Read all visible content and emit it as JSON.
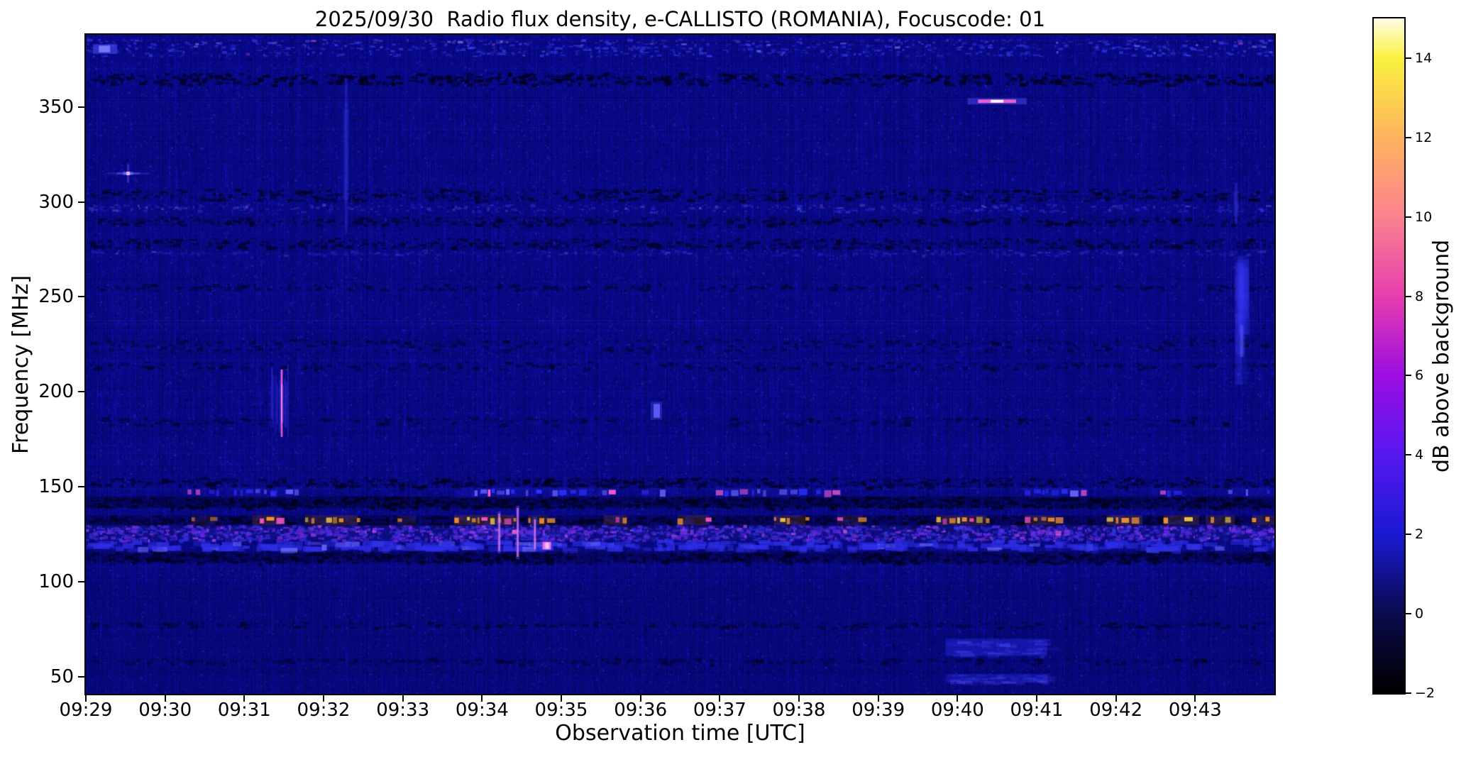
{
  "chart_data": {
    "type": "heatmap",
    "title": "2025/09/30  Radio flux density, e-CALLISTO (ROMANIA), Focuscode: 01",
    "xlabel": "Observation time [UTC]",
    "ylabel": "Frequency [MHz]",
    "colorbar_label": "dB above background",
    "x_start": "09:29:00",
    "x_end": "09:44:00",
    "x_ticks": [
      "09:29",
      "09:30",
      "09:31",
      "09:32",
      "09:33",
      "09:34",
      "09:35",
      "09:36",
      "09:37",
      "09:38",
      "09:39",
      "09:40",
      "09:41",
      "09:42",
      "09:43"
    ],
    "y_ticks_mhz": [
      350,
      300,
      250,
      200,
      150,
      100,
      50
    ],
    "freq_range_mhz": [
      41,
      388
    ],
    "value_range_db": [
      -2,
      15
    ],
    "colorbar_ticks_db": [
      14,
      12,
      10,
      8,
      6,
      4,
      2,
      0,
      -2
    ],
    "background_level_db": 0.8,
    "colormap_stops": [
      [
        0.0,
        "#000000"
      ],
      [
        0.118,
        "#0b0b4e"
      ],
      [
        0.235,
        "#1a1ad2"
      ],
      [
        0.353,
        "#5718f2"
      ],
      [
        0.471,
        "#9c0ee2"
      ],
      [
        0.588,
        "#e83eb0"
      ],
      [
        0.706,
        "#fb8290"
      ],
      [
        0.824,
        "#ffb35f"
      ],
      [
        0.941,
        "#faf23f"
      ],
      [
        1.0,
        "#fffce8"
      ]
    ],
    "base_color": "#08087e",
    "bands": [
      {
        "freq": [
          377,
          386
        ],
        "style": "bright_speckle",
        "strength": 0.85
      },
      {
        "freq": [
          362,
          368
        ],
        "style": "dark_speckle",
        "strength": 0.85
      },
      {
        "freq": [
          301,
          307
        ],
        "style": "dark_speckle",
        "strength": 0.6
      },
      {
        "freq": [
          295,
          299
        ],
        "style": "bright_speckle",
        "strength": 0.45
      },
      {
        "freq": [
          288,
          292
        ],
        "style": "dark_speckle",
        "strength": 0.5
      },
      {
        "freq": [
          276,
          281
        ],
        "style": "dark_speckle",
        "strength": 0.55
      },
      {
        "freq": [
          272,
          275
        ],
        "style": "bright_speckle",
        "strength": 0.3
      },
      {
        "freq": [
          254,
          257
        ],
        "style": "dark_speckle",
        "strength": 0.3
      },
      {
        "freq": [
          222,
          228
        ],
        "style": "dark_speckle",
        "strength": 0.35
      },
      {
        "freq": [
          212,
          216
        ],
        "style": "dark_speckle",
        "strength": 0.3
      },
      {
        "freq": [
          183,
          187
        ],
        "style": "dark_speckle",
        "strength": 0.25
      },
      {
        "freq": [
          150,
          155
        ],
        "style": "dark_speckle",
        "strength": 0.65
      },
      {
        "freq": [
          139,
          145
        ],
        "style": "dark_band",
        "strength": 0.8
      },
      {
        "freq": [
          129.5,
          135
        ],
        "style": "dark_band",
        "strength": 0.7
      },
      {
        "freq": [
          122,
          130
        ],
        "style": "purple_texture",
        "strength": 0.8
      },
      {
        "freq": [
          116,
          122
        ],
        "style": "blue_blobs",
        "strength": 0.8
      },
      {
        "freq": [
          110,
          116
        ],
        "style": "dark_band",
        "strength": 0.6
      },
      {
        "freq": [
          76,
          79
        ],
        "style": "dark_speckle",
        "strength": 0.3
      },
      {
        "freq": [
          57,
          60
        ],
        "style": "dark_speckle",
        "strength": 0.25
      }
    ],
    "rfi_dash_rows": [
      {
        "freq": 147,
        "height_mhz": 1.8,
        "palette": [
          "#2e2eff",
          "#6a6aff",
          "#ff5fd2"
        ],
        "segments": [
          [
            "09:30:17",
            "09:30:52",
            0.45
          ],
          [
            "09:30:52",
            "09:31:40",
            0.85
          ],
          [
            "09:33:39",
            "09:34:42",
            1.0
          ],
          [
            "09:34:46",
            "09:35:37",
            0.9
          ],
          [
            "09:36:01",
            "09:36:28",
            0.65
          ],
          [
            "09:36:57",
            "09:38:05",
            0.9
          ],
          [
            "09:38:13",
            "09:38:26",
            0.5
          ],
          [
            "09:40:51",
            "09:41:37",
            0.85
          ],
          [
            "09:42:25",
            "09:42:47",
            0.55
          ],
          [
            "09:43:25",
            "09:44:00",
            0.8
          ]
        ]
      },
      {
        "freq": 132.5,
        "height_mhz": 1.6,
        "palette": [
          "#ff9a33",
          "#ffd84e",
          "#ff55c8"
        ],
        "segments": [
          [
            "09:30:20",
            "09:30:38",
            0.45
          ],
          [
            "09:31:06",
            "09:31:28",
            0.9
          ],
          [
            "09:31:46",
            "09:32:07",
            0.8
          ],
          [
            "09:32:07",
            "09:32:26",
            0.95
          ],
          [
            "09:32:56",
            "09:33:10",
            0.5
          ],
          [
            "09:33:39",
            "09:34:25",
            1.0
          ],
          [
            "09:34:35",
            "09:34:50",
            0.8
          ],
          [
            "09:35:32",
            "09:35:50",
            0.85
          ],
          [
            "09:36:28",
            "09:36:52",
            0.9
          ],
          [
            "09:37:41",
            "09:38:05",
            0.9
          ],
          [
            "09:38:29",
            "09:38:48",
            0.6
          ],
          [
            "09:39:44",
            "09:40:22",
            0.85
          ],
          [
            "09:40:51",
            "09:41:15",
            0.8
          ],
          [
            "09:41:53",
            "09:42:20",
            0.95
          ],
          [
            "09:42:36",
            "09:43:03",
            0.85
          ],
          [
            "09:43:08",
            "09:43:30",
            0.8
          ],
          [
            "09:43:43",
            "09:44:00",
            0.8
          ]
        ]
      },
      {
        "freq": 126,
        "height_mhz": 1.5,
        "palette": [
          "#5a2ae0",
          "#8a38e8",
          "#ff6ad0"
        ],
        "segments": [
          [
            "09:30:20",
            "09:30:55",
            0.6
          ],
          [
            "09:31:40",
            "09:32:30",
            0.55
          ],
          [
            "09:33:45",
            "09:35:10",
            0.85
          ],
          [
            "09:36:30",
            "09:37:00",
            0.5
          ],
          [
            "09:37:55",
            "09:38:35",
            0.55
          ],
          [
            "09:40:55",
            "09:41:35",
            0.5
          ],
          [
            "09:42:30",
            "09:43:00",
            0.45
          ],
          [
            "09:43:30",
            "09:44:00",
            0.6
          ]
        ]
      }
    ],
    "events": [
      {
        "time": "09:29:13",
        "freq": [
          378,
          383
        ],
        "type": "blue_dash"
      },
      {
        "time": "09:29:32",
        "freq": [
          312,
          318
        ],
        "type": "point_flare"
      },
      {
        "time": "09:31:26",
        "freq": [
          174,
          214
        ],
        "type": "streak_cluster"
      },
      {
        "time": "09:32:17",
        "freq": [
          285,
          365
        ],
        "type": "faint_vstreak"
      },
      {
        "time": "09:34:13",
        "freq": [
          115,
          137
        ],
        "type": "bright_vstreak"
      },
      {
        "time": "09:34:27",
        "freq": [
          112,
          140
        ],
        "type": "bright_vstreak"
      },
      {
        "time": "09:34:40",
        "freq": [
          116,
          134
        ],
        "type": "bright_vstreak"
      },
      {
        "time": "09:34:49",
        "freq": [
          117,
          121
        ],
        "type": "pink_blob"
      },
      {
        "time": "09:36:12",
        "freq": [
          186,
          194
        ],
        "type": "blue_dot"
      },
      {
        "time": "09:40:30",
        "freq": [
          351,
          355
        ],
        "type": "bright_blip",
        "duration_s": 16
      },
      {
        "time": "09:43:31",
        "freq": [
          288,
          310
        ],
        "type": "faint_vstreak"
      },
      {
        "time": "09:43:35",
        "freq": [
          205,
          272
        ],
        "type": "blue_smudge"
      }
    ],
    "patches": [
      {
        "t": [
          "09:39:51",
          "09:41:08"
        ],
        "freq": [
          61,
          70
        ],
        "color": "#2424d8",
        "alpha": 0.5
      },
      {
        "t": [
          "09:39:51",
          "09:41:08"
        ],
        "freq": [
          47,
          51.5
        ],
        "color": "#2424d8",
        "alpha": 0.42
      }
    ]
  }
}
